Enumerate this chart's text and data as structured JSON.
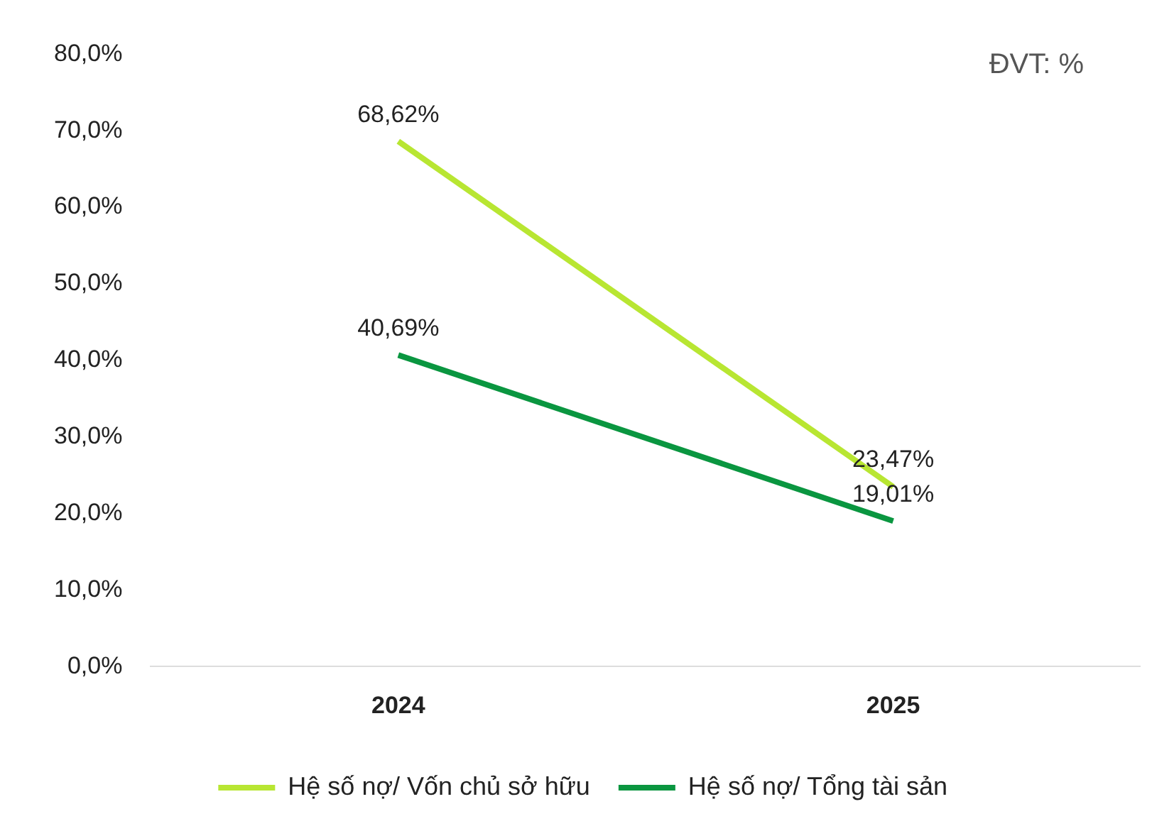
{
  "chart_data": {
    "type": "line",
    "categories": [
      "2024",
      "2025"
    ],
    "series": [
      {
        "name": "Hệ số nợ/ Vốn chủ sở hữu",
        "color": "#b8e632",
        "values": [
          68.62,
          23.47
        ],
        "value_labels": [
          "68,62%",
          "23,47%"
        ]
      },
      {
        "name": "Hệ số nợ/ Tổng tài sản",
        "color": "#0a9640",
        "values": [
          40.69,
          19.01
        ],
        "value_labels": [
          "40,69%",
          "19,01%"
        ]
      }
    ],
    "ylim": [
      0,
      80
    ],
    "yticks": [
      {
        "value": 0,
        "label": "0,0%"
      },
      {
        "value": 10,
        "label": "10,0%"
      },
      {
        "value": 20,
        "label": "20,0%"
      },
      {
        "value": 30,
        "label": "30,0%"
      },
      {
        "value": 40,
        "label": "40,0%"
      },
      {
        "value": 50,
        "label": "50,0%"
      },
      {
        "value": 60,
        "label": "60,0%"
      },
      {
        "value": 70,
        "label": "70,0%"
      },
      {
        "value": 80,
        "label": "80,0%"
      }
    ],
    "annotations": [
      "ĐVT: %"
    ],
    "legend": "bottom",
    "grid": false,
    "marker": "none",
    "line_style": "solid"
  }
}
